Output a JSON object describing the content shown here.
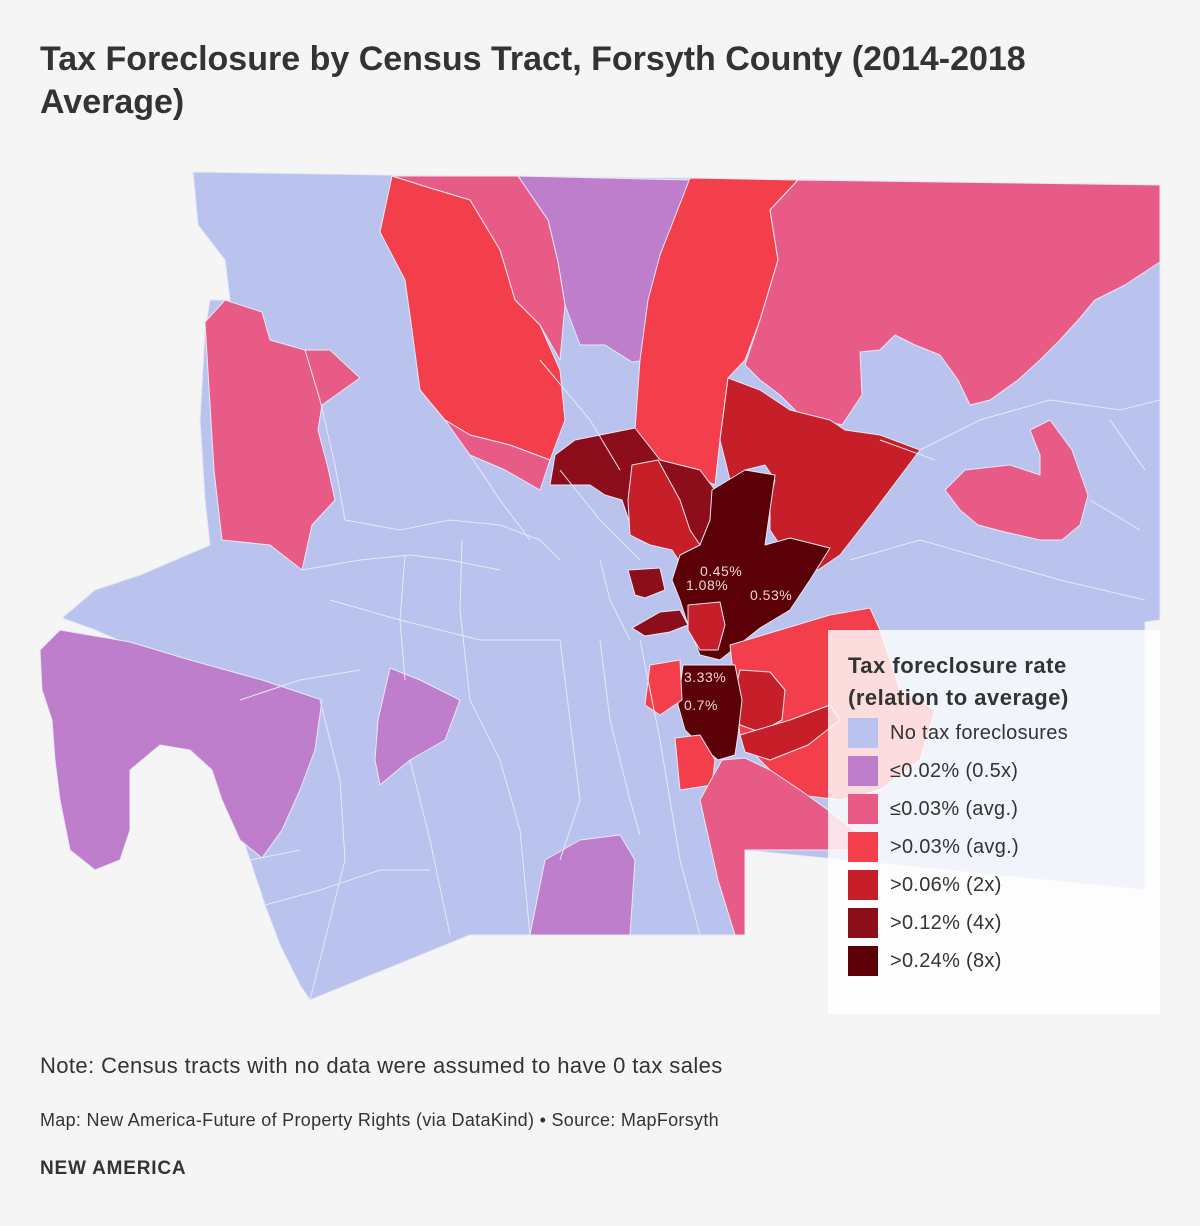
{
  "title": "Tax Foreclosure by Census Tract, Forsyth County (2014-2018 Average)",
  "map": {
    "colors": {
      "none": "#b9c3ee",
      "le002": "#be7ecb",
      "le003": "#e85b87",
      "gt003": "#f23f4b",
      "gt006": "#c61f29",
      "gt012": "#8c0e1a",
      "gt024": "#5a0006"
    },
    "labels": [
      {
        "text": "0.45%"
      },
      {
        "text": "1.08%"
      },
      {
        "text": "0.53%"
      },
      {
        "text": "3.33%"
      },
      {
        "text": "0.7%"
      }
    ]
  },
  "legend": {
    "title_line1": "Tax foreclosure rate",
    "title_line2": "(relation to average)",
    "items": [
      {
        "label": "No tax foreclosures",
        "color": "#b9c3ee"
      },
      {
        "label": "≤0.02% (0.5x)",
        "color": "#be7ecb"
      },
      {
        "label": "≤0.03% (avg.)",
        "color": "#e85b87"
      },
      {
        "label": ">0.03% (avg.)",
        "color": "#f23f4b"
      },
      {
        "label": ">0.06% (2x)",
        "color": "#c61f29"
      },
      {
        "label": ">0.12% (4x)",
        "color": "#8c0e1a"
      },
      {
        "label": ">0.24% (8x)",
        "color": "#5a0006"
      }
    ]
  },
  "note": "Note: Census tracts with no data were assumed to have 0 tax sales",
  "credit": "Map: New America-Future of Property Rights (via DataKind) • Source: MapForsyth",
  "brand": "NEW AMERICA"
}
